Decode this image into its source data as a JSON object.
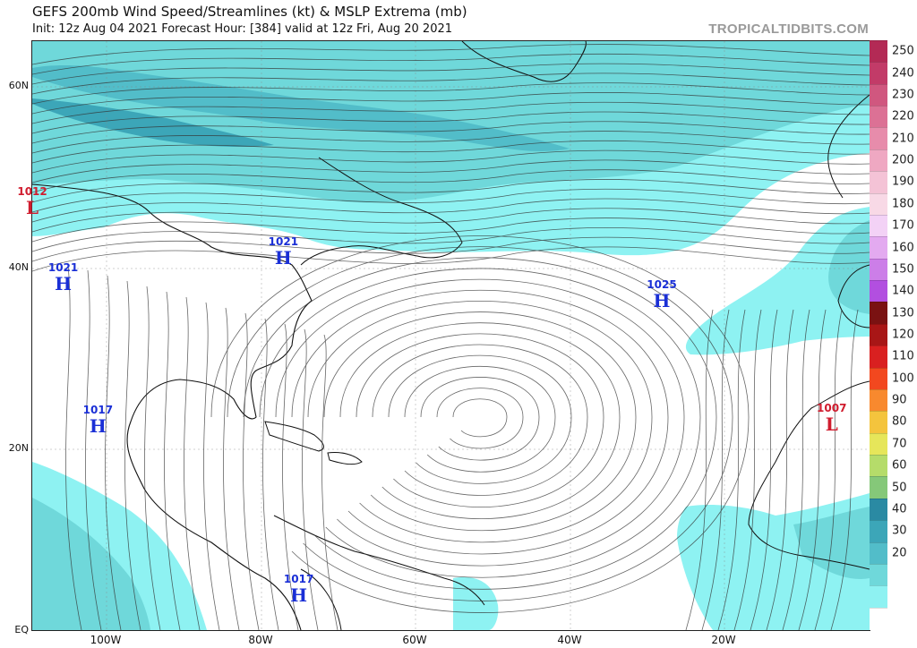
{
  "header": {
    "title": "GEFS 200mb Wind Speed/Streamlines (kt) & MSLP Extrema (mb)",
    "subtitle": "Init: 12z Aug 04 2021   Forecast Hour: [384]   valid at 12z Fri, Aug 20 2021",
    "brand": "TROPICALTIDBITS.COM"
  },
  "axes": {
    "lat_labels": [
      "60N",
      "40N",
      "20N",
      "EQ"
    ],
    "lon_labels": [
      "100W",
      "80W",
      "60W",
      "40W",
      "20W"
    ]
  },
  "colorbar": {
    "labels": [
      "250",
      "240",
      "230",
      "220",
      "210",
      "200",
      "190",
      "180",
      "170",
      "160",
      "150",
      "140",
      "130",
      "120",
      "110",
      "100",
      "90",
      "80",
      "70",
      "60",
      "50",
      "40",
      "30",
      "20"
    ],
    "colors": [
      "#b32a55",
      "#c23b68",
      "#d0577f",
      "#dc7195",
      "#e78cab",
      "#efa8c2",
      "#f4c3d6",
      "#f8d9e6",
      "#f3d2f6",
      "#e3aaf0",
      "#cc7ee8",
      "#b24fe0",
      "#7a1212",
      "#a81616",
      "#d92020",
      "#f2481f",
      "#f8892e",
      "#f4c43d",
      "#e6e65a",
      "#b5dc6a",
      "#85c879",
      "#2a8aa3",
      "#3ca6b8",
      "#52bdc9",
      "#6fd8da",
      "#8ef2f2",
      "#ffffff"
    ]
  },
  "pressure_systems": [
    {
      "type": "L",
      "value": "1012",
      "lon": -109.5,
      "lat": 48.6
    },
    {
      "type": "H",
      "value": "1021",
      "lon": -105.5,
      "lat": 40.2
    },
    {
      "type": "H",
      "value": "1021",
      "lon": -77.0,
      "lat": 43.0
    },
    {
      "type": "H",
      "value": "1025",
      "lon": -28.0,
      "lat": 38.3
    },
    {
      "type": "H",
      "value": "1017",
      "lon": -101.0,
      "lat": 24.5
    },
    {
      "type": "L",
      "value": "1007",
      "lon": -6.0,
      "lat": 24.7
    },
    {
      "type": "H",
      "value": "1017",
      "lon": -75.0,
      "lat": 5.8
    }
  ]
}
